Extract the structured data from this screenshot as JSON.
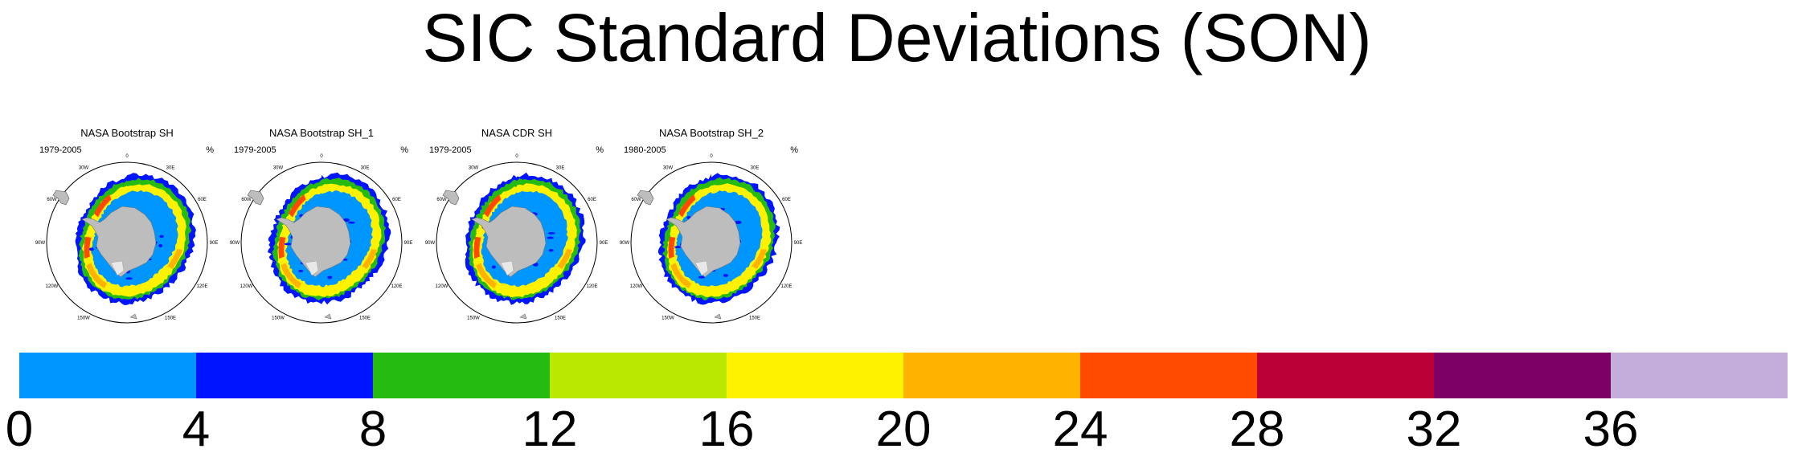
{
  "title": "SIC Standard Deviations (SON)",
  "unit": "%",
  "panels": [
    {
      "title": "NASA Bootstrap SH",
      "years": "1979-2005"
    },
    {
      "title": "NASA Bootstrap SH_1",
      "years": "1979-2005"
    },
    {
      "title": "NASA CDR SH",
      "years": "1979-2005"
    },
    {
      "title": "NASA Bootstrap SH_2",
      "years": "1980-2005"
    }
  ],
  "longitude_labels": [
    "0",
    "30E",
    "60E",
    "90E",
    "120E",
    "150E",
    "180",
    "150W",
    "120W",
    "90W",
    "60W",
    "30W"
  ],
  "colorbar": {
    "colors": [
      "#0096ff",
      "#0014ff",
      "#26bb10",
      "#bbe800",
      "#fff200",
      "#ffb300",
      "#ff4a00",
      "#ba0035",
      "#7d0066",
      "#c5addb"
    ],
    "ticks": [
      "0",
      "4",
      "8",
      "12",
      "16",
      "20",
      "24",
      "28",
      "32",
      "36"
    ]
  },
  "colors": {
    "land": "#bdbdbd",
    "ocean": "#ffffff"
  }
}
